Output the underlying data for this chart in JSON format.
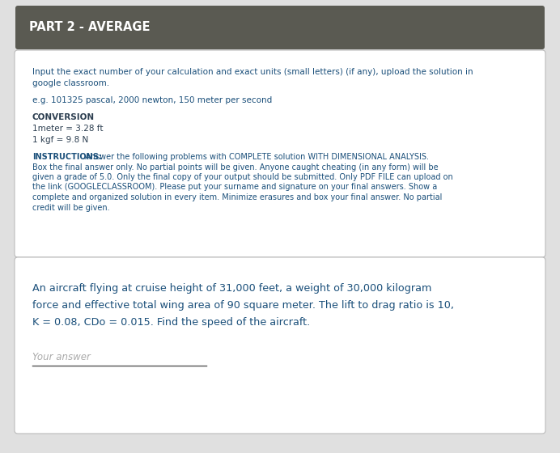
{
  "bg_color": "#e0e0e0",
  "header_bg": "#5a5a52",
  "header_text": "PART 2 - AVERAGE",
  "header_text_color": "#ffffff",
  "card1_bg": "#ffffff",
  "card2_bg": "#ffffff",
  "blue_text_color": "#1a4f7a",
  "dark_text_color": "#2c3e50",
  "instruction_line1": "Input the exact number of your calculation and exact units (small letters) (if any), upload the solution in",
  "instruction_line2": "google classroom.",
  "example_line": "e.g. 101325 pascal, 2000 newton, 150 meter per second",
  "conversion_title": "CONVERSION",
  "conversion_line1": "1meter = 3.28 ft",
  "conversion_line2": "1 kgf = 9.8 N",
  "instr_lines": [
    "INSTRUCTIONS: Answer the following problems with COMPLETE solution WITH DIMENSIONAL ANALYSIS.",
    "Box the final answer only. No partial points will be given. Anyone caught cheating (in any form) will be",
    "given a grade of 5.0. Only the final copy of your output should be submitted. Only PDF FILE can upload on",
    "the link (GOOGLECLASSROOM). Please put your surname and signature on your final answers. Show a",
    "complete and organized solution in every item. Minimize erasures and box your final answer. No partial",
    "credit will be given."
  ],
  "question_lines": [
    "An aircraft flying at cruise height of 31,000 feet, a weight of 30,000 kilogram",
    "force and effective total wing area of 90 square meter. The lift to drag ratio is 10,",
    "K = 0.08, CDo = 0.015. Find the speed of the aircraft."
  ],
  "answer_placeholder": "Your answer",
  "answer_line_color": "#555555"
}
